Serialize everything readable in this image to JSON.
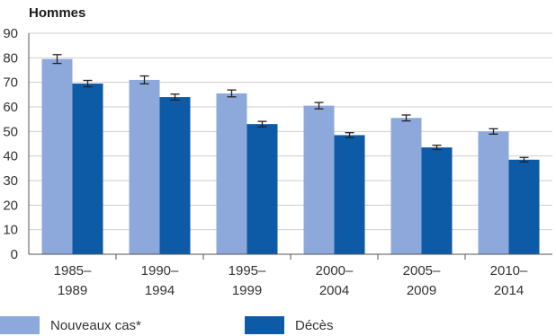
{
  "chart_data": {
    "type": "bar",
    "title": "Hommes",
    "categories": [
      [
        "1985–",
        "1989"
      ],
      [
        "1990–",
        "1994"
      ],
      [
        "1995–",
        "1999"
      ],
      [
        "2000–",
        "2004"
      ],
      [
        "2005–",
        "2009"
      ],
      [
        "2010–",
        "2014"
      ]
    ],
    "series": [
      {
        "name": "Nouveaux cas*",
        "color": "#8da8db",
        "values": [
          79.5,
          71,
          65.5,
          60.5,
          55.5,
          50
        ],
        "err": [
          1.8,
          1.6,
          1.4,
          1.3,
          1.2,
          1.1
        ]
      },
      {
        "name": "Décès",
        "color": "#0d5aa7",
        "values": [
          69.5,
          64,
          53,
          48.5,
          43.5,
          38.5
        ],
        "err": [
          1.3,
          1.2,
          1.1,
          1.0,
          0.9,
          0.9
        ]
      }
    ],
    "yticks": [
      0,
      10,
      20,
      30,
      40,
      50,
      60,
      70,
      80,
      90
    ],
    "ylim": [
      0,
      90
    ],
    "xlabel": "",
    "ylabel": "",
    "grid": true,
    "legend_position": "bottom"
  }
}
